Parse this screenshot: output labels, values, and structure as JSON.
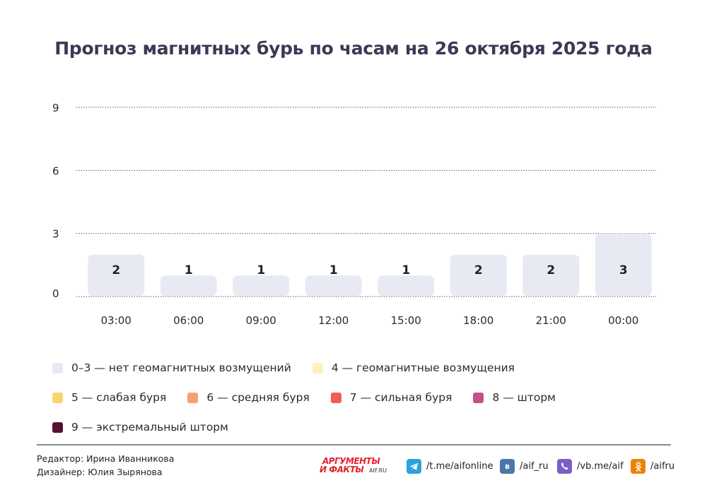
{
  "title": "Прогноз магнитных бурь по часам на 26 октября 2025 года",
  "chart_data": {
    "type": "bar",
    "categories": [
      "03:00",
      "06:00",
      "09:00",
      "12:00",
      "15:00",
      "18:00",
      "21:00",
      "00:00"
    ],
    "values": [
      2,
      1,
      1,
      1,
      1,
      2,
      2,
      3
    ],
    "ylim": [
      0,
      9
    ],
    "yticks": [
      "0",
      "3",
      "6",
      "9"
    ],
    "grid": true,
    "bar_color": "#e8eaf3",
    "xlabel": "",
    "ylabel": ""
  },
  "legend": [
    [
      {
        "color": "#e8eaf3",
        "label": "0–3 — нет геомагнитных возмущений"
      },
      {
        "color": "#fcefc4",
        "label": "4 — геомагнитные возмущения"
      }
    ],
    [
      {
        "color": "#f8d66d",
        "label": "5 — слабая буря"
      },
      {
        "color": "#f5a06e",
        "label": "6 — средняя буря"
      },
      {
        "color": "#ef5e55",
        "label": "7 — сильная буря"
      },
      {
        "color": "#c4508a",
        "label": "8 — шторм"
      }
    ],
    [
      {
        "color": "#5a0f35",
        "label": "9 — экстремальный шторм"
      }
    ]
  ],
  "footer": {
    "editor": "Редактор: Ирина Иванникова",
    "designer": "Дизайнер: Юлия Зырянова",
    "brand_line1": "АРГУМЕНТЫ",
    "brand_line2": "И ФАКТЫ",
    "brand_domain": "AIF.RU",
    "telegram": "/t.me/aifonline",
    "vk": "/aif_ru",
    "viber": "/vb.me/aif",
    "ok": "/aifru",
    "icon_names": [
      "telegram-icon",
      "vk-icon",
      "viber-icon",
      "odnoklassniki-icon"
    ],
    "colors": {
      "telegram": "#2aa3d8",
      "vk": "#4a76a8",
      "viber": "#7b5ec6",
      "ok": "#ee8208"
    }
  }
}
